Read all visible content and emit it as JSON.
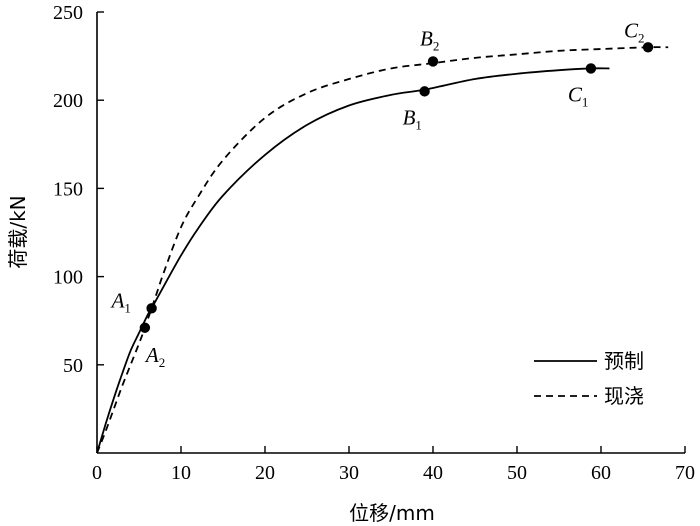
{
  "chart_data": {
    "type": "line",
    "xlabel": "位移/mm",
    "ylabel": "荷载/kN",
    "xlim": [
      0,
      70
    ],
    "ylim": [
      0,
      250
    ],
    "xticks": [
      0,
      10,
      20,
      30,
      40,
      50,
      60,
      70
    ],
    "yticks": [
      50,
      100,
      150,
      200,
      250
    ],
    "grid": false,
    "legend_position": "bottom-right",
    "series": [
      {
        "name": "预制",
        "style": "solid",
        "x": [
          0,
          1,
          2,
          3,
          4,
          5,
          6,
          6.5,
          8,
          10,
          12,
          15,
          20,
          25,
          30,
          35,
          39,
          45,
          50,
          55,
          58.8,
          61
        ],
        "y": [
          0,
          16,
          31,
          45,
          58,
          68,
          78,
          82,
          95,
          112,
          127,
          146,
          169,
          186,
          197,
          203,
          206,
          212,
          215,
          217,
          218,
          218
        ]
      },
      {
        "name": "现浇",
        "style": "dashed",
        "x": [
          0,
          1,
          2,
          3,
          4,
          5,
          5.7,
          7,
          8,
          10,
          12,
          15,
          20,
          25,
          30,
          35,
          40,
          45,
          50,
          55,
          60,
          65.6,
          68
        ],
        "y": [
          0,
          12,
          25,
          38,
          50,
          62,
          71,
          89,
          103,
          128,
          145,
          166,
          190,
          204,
          212,
          218,
          221,
          224,
          226,
          228,
          229,
          230,
          230
        ]
      }
    ],
    "points": [
      {
        "label": "A",
        "sub": "1",
        "series": "预制",
        "x": 6.5,
        "y": 82
      },
      {
        "label": "A",
        "sub": "2",
        "series": "现浇",
        "x": 5.7,
        "y": 71
      },
      {
        "label": "B",
        "sub": "1",
        "series": "预制",
        "x": 39,
        "y": 205
      },
      {
        "label": "B",
        "sub": "2",
        "series": "现浇",
        "x": 40,
        "y": 222
      },
      {
        "label": "C",
        "sub": "1",
        "series": "预制",
        "x": 58.8,
        "y": 218
      },
      {
        "label": "C",
        "sub": "2",
        "series": "现浇",
        "x": 65.6,
        "y": 230
      }
    ]
  }
}
